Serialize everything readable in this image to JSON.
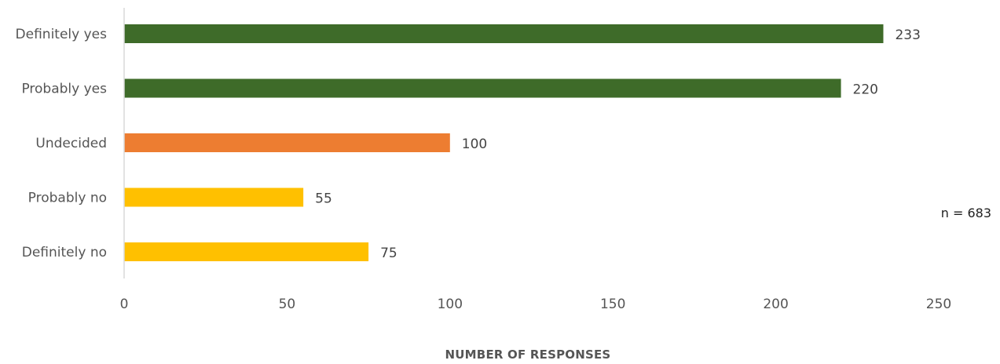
{
  "chart_data": {
    "type": "bar",
    "orientation": "horizontal",
    "categories": [
      "Definitely yes",
      "Probably yes",
      "Undecided",
      "Probably no",
      "Definitely no"
    ],
    "values": [
      233,
      220,
      100,
      55,
      75
    ],
    "bar_colors": [
      "#3e6b29",
      "#3e6b29",
      "#ed7d31",
      "#ffc000",
      "#ffc000"
    ],
    "xlim": [
      0,
      250
    ],
    "xticks": [
      0,
      50,
      100,
      150,
      200,
      250
    ],
    "xlabel": "NUMBER OF RESPONSES",
    "ylabel": "",
    "grid": false,
    "data_labels": true,
    "annotation": "n = 683"
  }
}
